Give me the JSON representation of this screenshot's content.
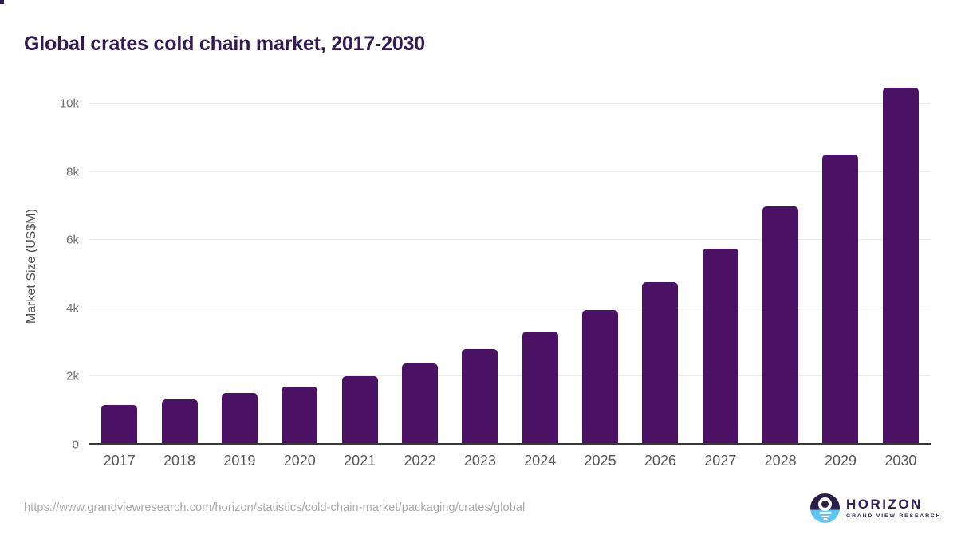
{
  "page": {
    "footer_url": "https://www.grandviewresearch.com/horizon/statistics/cold-chain-market/packaging/crates/global"
  },
  "logo": {
    "brand": "HORIZON",
    "subbrand": "GRAND VIEW RESEARCH"
  },
  "chart_data": {
    "type": "bar",
    "title": "Global crates cold chain market, 2017-2030",
    "categories": [
      "2017",
      "2018",
      "2019",
      "2020",
      "2021",
      "2022",
      "2023",
      "2024",
      "2025",
      "2026",
      "2027",
      "2028",
      "2029",
      "2030"
    ],
    "values": [
      1120,
      1290,
      1480,
      1670,
      1960,
      2330,
      2760,
      3280,
      3910,
      4720,
      5710,
      6940,
      8460,
      10430
    ],
    "xlabel": "",
    "ylabel": "Market Size (US$M)",
    "ylim": [
      0,
      10500
    ],
    "yticks": [
      {
        "value": 0,
        "label": "0"
      },
      {
        "value": 2000,
        "label": "2k"
      },
      {
        "value": 4000,
        "label": "4k"
      },
      {
        "value": 6000,
        "label": "6k"
      },
      {
        "value": 8000,
        "label": "8k"
      },
      {
        "value": 10000,
        "label": "10k"
      }
    ],
    "grid": true,
    "legend": false,
    "bar_color": "#4a1164"
  },
  "colors": {
    "accent_purple": "#4a1164",
    "title_text": "#321b52",
    "axis_text": "#565656",
    "tick_text": "#6e6e6e",
    "muted_text": "#a8a8a8",
    "gridline": "#e9e9e9",
    "axis_line": "#383838",
    "logo_dark": "#2b2047",
    "logo_blue": "#5ec6f2"
  }
}
